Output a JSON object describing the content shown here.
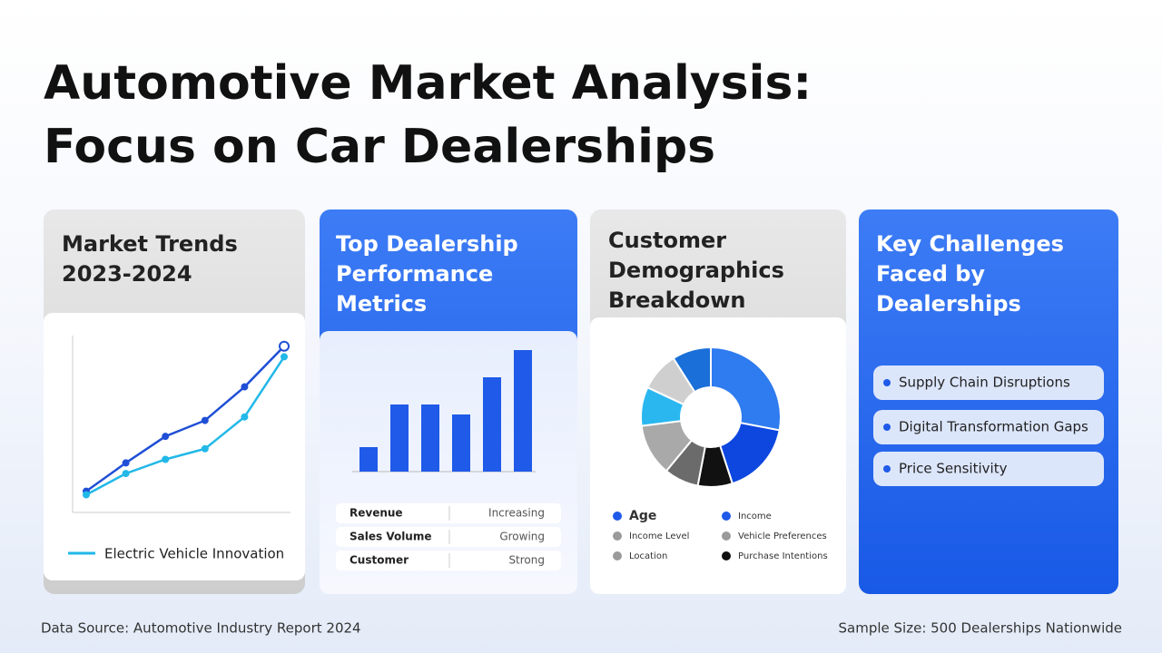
{
  "header": {
    "title_lines": [
      "Automotive Market Analysis:",
      "Focus on Car Dealerships"
    ]
  },
  "trends": {
    "title_lines": [
      "Market Trends",
      "2023-2024"
    ],
    "type": "line",
    "ylim": [
      0,
      100
    ],
    "series": [
      {
        "color": "#1f4fd6",
        "values": [
          12,
          28,
          43,
          52,
          71,
          94
        ]
      },
      {
        "name": "Electric Vehicle Innovation",
        "color": "#22b8e8",
        "values": [
          10,
          22,
          30,
          36,
          54,
          88
        ]
      }
    ]
  },
  "performance": {
    "title_lines": [
      "Top Dealership",
      "Performance",
      "Metrics"
    ],
    "type": "bar",
    "ylim": [
      0,
      150
    ],
    "color": "#1f5ae8",
    "values": [
      27,
      74,
      74,
      63,
      104,
      134
    ],
    "table": [
      [
        "Revenue",
        "Increasing"
      ],
      [
        "Sales Volume",
        "Growing"
      ],
      [
        "Customer",
        "Strong"
      ]
    ]
  },
  "demographics": {
    "title_lines": [
      "Customer",
      "Demographics",
      "Breakdown"
    ],
    "type": "pie",
    "values": [
      28,
      17,
      8,
      8,
      12,
      9,
      9,
      9
    ],
    "colors": [
      "#2f7bf0",
      "#0d47e0",
      "#111111",
      "#6b6b6b",
      "#a9a9a9",
      "#2ab7f0",
      "#cfcfcf",
      "#1a6fd8"
    ],
    "legend": [
      {
        "name": "Age",
        "color": "#1f5ae8"
      },
      {
        "name": "Income Level",
        "color": "#9a9a9a"
      },
      {
        "name": "Location",
        "color": "#9a9a9a"
      },
      {
        "name": "Income",
        "color": "#1f5ae8"
      },
      {
        "name": "Vehicle Preferences",
        "color": "#9a9a9a"
      },
      {
        "name": "Purchase Intentions",
        "color": "#111111"
      }
    ]
  },
  "challenges": {
    "title_lines": [
      "Key Challenges",
      "Faced by",
      "Dealerships"
    ],
    "items": [
      "Supply Chain Disruptions",
      "Digital Transformation Gaps",
      "Price Sensitivity"
    ]
  },
  "footer": {
    "left": "Data Source: Automotive Industry Report 2024",
    "right": "Sample Size: 500 Dealerships Nationwide"
  }
}
